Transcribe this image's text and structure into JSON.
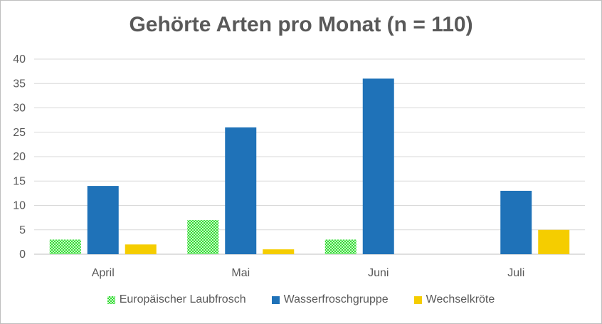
{
  "chart_data": {
    "type": "bar",
    "title": "Gehörte Arten pro Monat (n = 110)",
    "categories": [
      "April",
      "Mai",
      "Juni",
      "Juli"
    ],
    "series": [
      {
        "name": "Europäischer Laubfrosch",
        "values": [
          3,
          7,
          3,
          0
        ],
        "color": "#33dd33",
        "pattern": "checkered"
      },
      {
        "name": "Wasserfroschgruppe",
        "values": [
          14,
          26,
          36,
          13
        ],
        "color": "#1f72b8"
      },
      {
        "name": "Wechselkröte",
        "values": [
          2,
          1,
          0,
          5
        ],
        "color": "#f5cd00"
      }
    ],
    "ylim": [
      0,
      40
    ],
    "yticks": [
      0,
      5,
      10,
      15,
      20,
      25,
      30,
      35,
      40
    ],
    "grid": true,
    "legend": "bottom",
    "xlabel": "",
    "ylabel": ""
  }
}
